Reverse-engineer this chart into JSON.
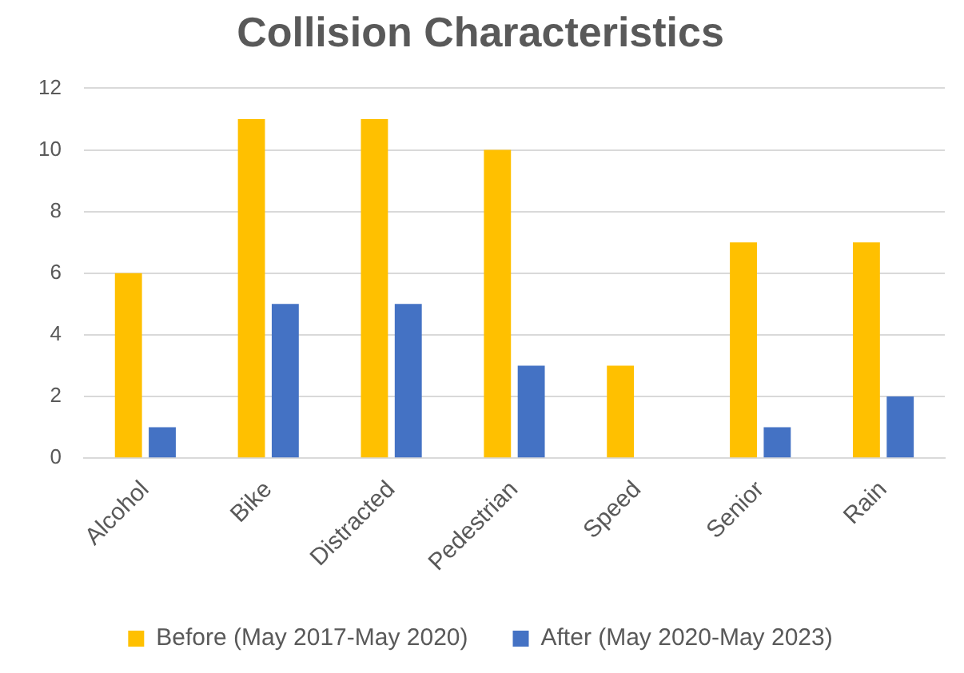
{
  "chart_data": {
    "type": "bar",
    "title": "Collision Characteristics",
    "categories": [
      "Alcohol",
      "Bike",
      "Distracted",
      "Pedestrian",
      "Speed",
      "Senior",
      "Rain"
    ],
    "series": [
      {
        "name": "Before (May 2017-May 2020)",
        "color": "#ffc000",
        "values": [
          6,
          11,
          11,
          10,
          3,
          7,
          7
        ]
      },
      {
        "name": "After (May 2020-May 2023)",
        "color": "#4472c4",
        "values": [
          1,
          5,
          5,
          3,
          0,
          1,
          2
        ]
      }
    ],
    "ylim": [
      0,
      12
    ],
    "yticks": [
      0,
      2,
      4,
      6,
      8,
      10,
      12
    ],
    "grid": "y",
    "legend": "bottom"
  }
}
